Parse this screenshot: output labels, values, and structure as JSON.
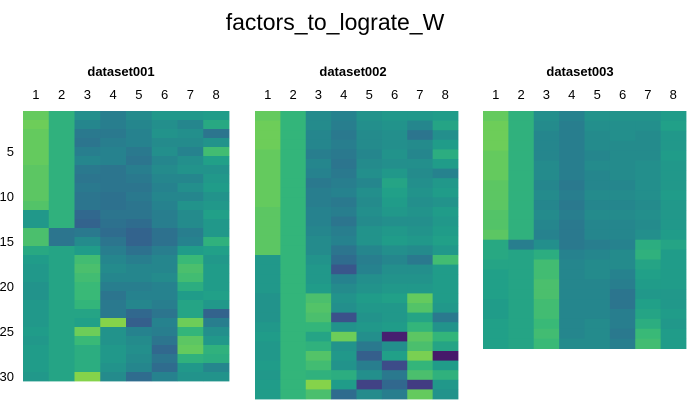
{
  "chart_data": {
    "type": "heatmap",
    "title": "factors_to_lograte_W",
    "colormap": "viridis",
    "color_range": [
      0,
      1
    ],
    "panels": [
      {
        "title": "dataset001",
        "x_ticks": [
          "1",
          "2",
          "3",
          "4",
          "5",
          "6",
          "7",
          "8"
        ],
        "y_ticks": [
          "5",
          "10",
          "15",
          "20",
          "25",
          "30"
        ],
        "ylim": [
          0.5,
          30.5
        ],
        "matrix": [
          [
            0.86,
            0.72,
            0.56,
            0.48,
            0.54,
            0.6,
            0.6,
            0.62
          ],
          [
            0.88,
            0.72,
            0.52,
            0.48,
            0.52,
            0.56,
            0.52,
            0.68
          ],
          [
            0.86,
            0.72,
            0.46,
            0.46,
            0.5,
            0.58,
            0.56,
            0.44
          ],
          [
            0.86,
            0.72,
            0.44,
            0.48,
            0.5,
            0.54,
            0.54,
            0.58
          ],
          [
            0.86,
            0.72,
            0.48,
            0.5,
            0.46,
            0.56,
            0.5,
            0.78
          ],
          [
            0.86,
            0.72,
            0.52,
            0.5,
            0.44,
            0.52,
            0.56,
            0.64
          ],
          [
            0.84,
            0.72,
            0.46,
            0.44,
            0.48,
            0.54,
            0.58,
            0.58
          ],
          [
            0.84,
            0.72,
            0.44,
            0.44,
            0.46,
            0.52,
            0.52,
            0.6
          ],
          [
            0.84,
            0.72,
            0.46,
            0.44,
            0.44,
            0.5,
            0.56,
            0.62
          ],
          [
            0.84,
            0.72,
            0.44,
            0.42,
            0.46,
            0.52,
            0.52,
            0.58
          ],
          [
            0.82,
            0.72,
            0.44,
            0.42,
            0.44,
            0.5,
            0.58,
            0.6
          ],
          [
            0.6,
            0.72,
            0.38,
            0.44,
            0.44,
            0.48,
            0.54,
            0.64
          ],
          [
            0.6,
            0.72,
            0.36,
            0.42,
            0.4,
            0.48,
            0.54,
            0.6
          ],
          [
            0.8,
            0.44,
            0.46,
            0.4,
            0.36,
            0.42,
            0.48,
            0.6
          ],
          [
            0.8,
            0.44,
            0.54,
            0.44,
            0.36,
            0.42,
            0.5,
            0.72
          ],
          [
            0.68,
            0.66,
            0.62,
            0.48,
            0.42,
            0.48,
            0.62,
            0.64
          ],
          [
            0.62,
            0.66,
            0.78,
            0.52,
            0.48,
            0.52,
            0.76,
            0.6
          ],
          [
            0.6,
            0.66,
            0.8,
            0.54,
            0.52,
            0.52,
            0.8,
            0.62
          ],
          [
            0.6,
            0.66,
            0.78,
            0.52,
            0.52,
            0.54,
            0.78,
            0.62
          ],
          [
            0.58,
            0.66,
            0.76,
            0.48,
            0.48,
            0.5,
            0.7,
            0.62
          ],
          [
            0.58,
            0.66,
            0.76,
            0.44,
            0.5,
            0.5,
            0.62,
            0.64
          ],
          [
            0.6,
            0.66,
            0.74,
            0.46,
            0.52,
            0.48,
            0.66,
            0.6
          ],
          [
            0.6,
            0.66,
            0.66,
            0.46,
            0.38,
            0.44,
            0.66,
            0.36
          ],
          [
            0.6,
            0.66,
            0.64,
            0.92,
            0.34,
            0.5,
            0.88,
            0.48
          ],
          [
            0.62,
            0.66,
            0.88,
            0.58,
            0.5,
            0.48,
            0.74,
            0.56
          ],
          [
            0.6,
            0.66,
            0.76,
            0.58,
            0.54,
            0.44,
            0.84,
            0.6
          ],
          [
            0.62,
            0.66,
            0.7,
            0.6,
            0.56,
            0.38,
            0.86,
            0.72
          ],
          [
            0.62,
            0.66,
            0.7,
            0.6,
            0.54,
            0.44,
            0.72,
            0.7
          ],
          [
            0.62,
            0.66,
            0.7,
            0.58,
            0.52,
            0.4,
            0.6,
            0.52
          ],
          [
            0.6,
            0.66,
            0.92,
            0.54,
            0.4,
            0.5,
            0.58,
            0.58
          ]
        ]
      },
      {
        "title": "dataset002",
        "x_ticks": [
          "1",
          "2",
          "3",
          "4",
          "5",
          "6",
          "7",
          "8"
        ],
        "y_ticks": [],
        "ylim": [
          0.5,
          30.5
        ],
        "matrix": [
          [
            0.86,
            0.74,
            0.54,
            0.5,
            0.58,
            0.6,
            0.6,
            0.62
          ],
          [
            0.88,
            0.74,
            0.54,
            0.48,
            0.56,
            0.58,
            0.52,
            0.66
          ],
          [
            0.88,
            0.74,
            0.52,
            0.46,
            0.54,
            0.56,
            0.44,
            0.56
          ],
          [
            0.88,
            0.74,
            0.52,
            0.48,
            0.54,
            0.56,
            0.54,
            0.62
          ],
          [
            0.86,
            0.74,
            0.48,
            0.46,
            0.52,
            0.58,
            0.52,
            0.7
          ],
          [
            0.86,
            0.74,
            0.52,
            0.44,
            0.54,
            0.56,
            0.56,
            0.62
          ],
          [
            0.86,
            0.74,
            0.5,
            0.46,
            0.56,
            0.6,
            0.54,
            0.5
          ],
          [
            0.86,
            0.74,
            0.46,
            0.48,
            0.52,
            0.66,
            0.56,
            0.6
          ],
          [
            0.86,
            0.74,
            0.48,
            0.5,
            0.56,
            0.64,
            0.58,
            0.62
          ],
          [
            0.86,
            0.74,
            0.48,
            0.46,
            0.54,
            0.62,
            0.56,
            0.58
          ],
          [
            0.84,
            0.74,
            0.5,
            0.48,
            0.56,
            0.6,
            0.58,
            0.62
          ],
          [
            0.84,
            0.74,
            0.5,
            0.44,
            0.54,
            0.56,
            0.56,
            0.6
          ],
          [
            0.84,
            0.74,
            0.52,
            0.48,
            0.58,
            0.6,
            0.58,
            0.62
          ],
          [
            0.84,
            0.74,
            0.54,
            0.5,
            0.58,
            0.62,
            0.6,
            0.64
          ],
          [
            0.84,
            0.74,
            0.54,
            0.44,
            0.52,
            0.56,
            0.54,
            0.6
          ],
          [
            0.6,
            0.74,
            0.58,
            0.4,
            0.48,
            0.52,
            0.46,
            0.78
          ],
          [
            0.6,
            0.74,
            0.6,
            0.3,
            0.5,
            0.56,
            0.56,
            0.62
          ],
          [
            0.6,
            0.74,
            0.6,
            0.5,
            0.56,
            0.58,
            0.58,
            0.62
          ],
          [
            0.6,
            0.74,
            0.62,
            0.54,
            0.58,
            0.6,
            0.6,
            0.62
          ],
          [
            0.58,
            0.74,
            0.8,
            0.58,
            0.62,
            0.64,
            0.86,
            0.62
          ],
          [
            0.58,
            0.74,
            0.82,
            0.56,
            0.6,
            0.6,
            0.82,
            0.6
          ],
          [
            0.58,
            0.74,
            0.8,
            0.28,
            0.58,
            0.6,
            0.66,
            0.46
          ],
          [
            0.6,
            0.74,
            0.74,
            0.58,
            0.6,
            0.62,
            0.74,
            0.58
          ],
          [
            0.62,
            0.74,
            0.66,
            0.88,
            0.56,
            0.1,
            0.84,
            0.74
          ],
          [
            0.6,
            0.74,
            0.72,
            0.58,
            0.46,
            0.56,
            0.8,
            0.66
          ],
          [
            0.6,
            0.74,
            0.82,
            0.6,
            0.34,
            0.64,
            0.9,
            0.08
          ],
          [
            0.62,
            0.74,
            0.78,
            0.58,
            0.48,
            0.26,
            0.74,
            0.62
          ],
          [
            0.6,
            0.74,
            0.72,
            0.7,
            0.56,
            0.46,
            0.8,
            0.72
          ],
          [
            0.62,
            0.74,
            0.92,
            0.62,
            0.22,
            0.38,
            0.2,
            0.6
          ],
          [
            0.62,
            0.74,
            0.8,
            0.4,
            0.54,
            0.48,
            0.86,
            0.58
          ]
        ]
      },
      {
        "title": "dataset003",
        "x_ticks": [
          "1",
          "2",
          "3",
          "4",
          "5",
          "6",
          "7",
          "8"
        ],
        "y_ticks": [],
        "ylim": [
          0.5,
          30.5
        ],
        "matrix": [
          [
            0.86,
            0.72,
            0.56,
            0.5,
            0.58,
            0.58,
            0.58,
            0.62
          ],
          [
            0.88,
            0.72,
            0.54,
            0.48,
            0.56,
            0.56,
            0.56,
            0.64
          ],
          [
            0.88,
            0.72,
            0.52,
            0.48,
            0.54,
            0.56,
            0.54,
            0.6
          ],
          [
            0.88,
            0.72,
            0.52,
            0.48,
            0.54,
            0.54,
            0.54,
            0.6
          ],
          [
            0.86,
            0.72,
            0.52,
            0.48,
            0.52,
            0.54,
            0.54,
            0.62
          ],
          [
            0.86,
            0.72,
            0.54,
            0.48,
            0.54,
            0.54,
            0.56,
            0.6
          ],
          [
            0.86,
            0.72,
            0.54,
            0.48,
            0.52,
            0.54,
            0.56,
            0.6
          ],
          [
            0.84,
            0.72,
            0.52,
            0.46,
            0.52,
            0.52,
            0.56,
            0.6
          ],
          [
            0.84,
            0.72,
            0.54,
            0.48,
            0.54,
            0.54,
            0.56,
            0.62
          ],
          [
            0.84,
            0.72,
            0.52,
            0.46,
            0.52,
            0.52,
            0.54,
            0.6
          ],
          [
            0.82,
            0.72,
            0.54,
            0.48,
            0.54,
            0.54,
            0.56,
            0.6
          ],
          [
            0.82,
            0.72,
            0.52,
            0.46,
            0.52,
            0.52,
            0.54,
            0.6
          ],
          [
            0.84,
            0.72,
            0.5,
            0.46,
            0.52,
            0.52,
            0.56,
            0.62
          ],
          [
            0.68,
            0.48,
            0.56,
            0.46,
            0.48,
            0.5,
            0.7,
            0.66
          ],
          [
            0.68,
            0.66,
            0.7,
            0.5,
            0.52,
            0.54,
            0.72,
            0.62
          ],
          [
            0.66,
            0.66,
            0.78,
            0.52,
            0.54,
            0.54,
            0.66,
            0.62
          ],
          [
            0.64,
            0.66,
            0.78,
            0.52,
            0.54,
            0.5,
            0.64,
            0.62
          ],
          [
            0.64,
            0.66,
            0.8,
            0.52,
            0.52,
            0.48,
            0.62,
            0.62
          ],
          [
            0.64,
            0.66,
            0.8,
            0.52,
            0.52,
            0.44,
            0.6,
            0.6
          ],
          [
            0.62,
            0.66,
            0.78,
            0.52,
            0.52,
            0.44,
            0.64,
            0.6
          ],
          [
            0.62,
            0.66,
            0.78,
            0.52,
            0.52,
            0.48,
            0.66,
            0.62
          ],
          [
            0.64,
            0.66,
            0.76,
            0.52,
            0.54,
            0.48,
            0.7,
            0.6
          ],
          [
            0.64,
            0.66,
            0.78,
            0.52,
            0.54,
            0.46,
            0.76,
            0.62
          ],
          [
            0.64,
            0.66,
            0.76,
            0.54,
            0.54,
            0.48,
            0.78,
            0.62
          ]
        ]
      }
    ]
  }
}
